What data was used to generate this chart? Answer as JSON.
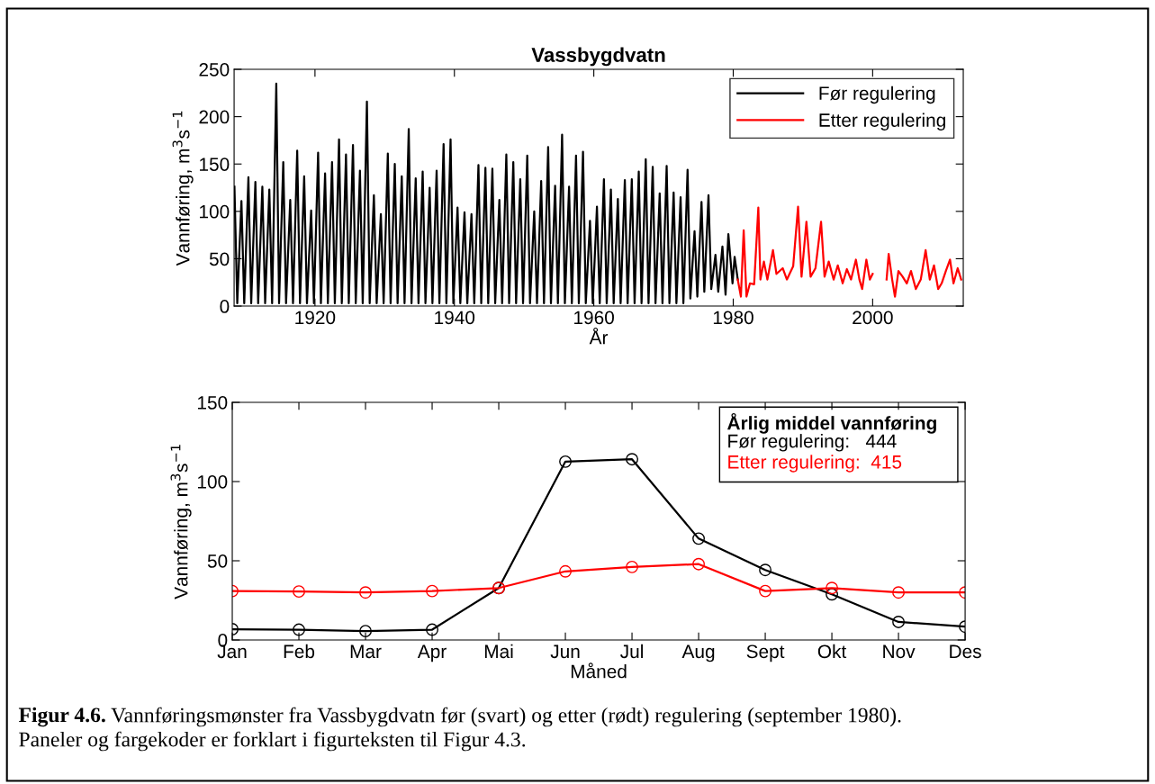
{
  "chart_data": [
    {
      "type": "line",
      "title": "Vassbygdvatn",
      "xlabel": "År",
      "ylabel": "Vannføring, m$^{3}$s$^{−1}$",
      "xlim": [
        1908.4,
        2013
      ],
      "xticks": [
        1920,
        1940,
        1960,
        1980,
        2000
      ],
      "ylim": [
        0,
        250
      ],
      "yticks": [
        0,
        50,
        100,
        150,
        200,
        250
      ],
      "legend": "top right",
      "grid": false,
      "marker": "none",
      "line_style": "solid",
      "series": [
        {
          "name": "Før regulering",
          "color": "#000000",
          "x": [
            1908.45,
            1908.85,
            1909.45,
            1909.85,
            1910.45,
            1910.85,
            1911.45,
            1911.85,
            1912.45,
            1912.85,
            1913.45,
            1913.85,
            1914.45,
            1914.85,
            1915.45,
            1915.85,
            1916.45,
            1916.85,
            1917.45,
            1917.85,
            1918.45,
            1918.85,
            1919.45,
            1919.85,
            1920.45,
            1920.85,
            1921.45,
            1921.85,
            1922.45,
            1922.85,
            1923.45,
            1923.85,
            1924.45,
            1924.85,
            1925.45,
            1925.85,
            1926.45,
            1926.85,
            1927.45,
            1927.85,
            1928.45,
            1928.85,
            1929.45,
            1929.85,
            1930.45,
            1930.85,
            1931.45,
            1931.85,
            1932.45,
            1932.85,
            1933.45,
            1933.85,
            1934.45,
            1934.85,
            1935.45,
            1935.85,
            1936.45,
            1936.85,
            1937.45,
            1937.85,
            1938.45,
            1938.85,
            1939.45,
            1939.85,
            1940.45,
            1940.85,
            1941.45,
            1941.85,
            1942.45,
            1942.85,
            1943.45,
            1943.85,
            1944.45,
            1944.85,
            1945.45,
            1945.85,
            1946.45,
            1946.85,
            1947.45,
            1947.85,
            1948.45,
            1948.85,
            1949.45,
            1949.85,
            1950.45,
            1950.85,
            1951.45,
            1951.85,
            1952.45,
            1952.85,
            1953.45,
            1953.85,
            1954.45,
            1954.85,
            1955.45,
            1955.85,
            1956.45,
            1956.85,
            1957.45,
            1957.85,
            1958.45,
            1958.85,
            1959.45,
            1959.85,
            1960.45,
            1960.85,
            1961.45,
            1961.85,
            1962.45,
            1962.85,
            1963.45,
            1963.85,
            1964.45,
            1964.85,
            1965.45,
            1965.85,
            1966.45,
            1966.85,
            1967.45,
            1967.85,
            1968.45,
            1968.85,
            1969.45,
            1969.85,
            1970.45,
            1970.85,
            1971.45,
            1971.85,
            1972.45,
            1972.85,
            1973.45,
            1973.85,
            1974.45,
            1974.85,
            1975.45,
            1975.85,
            1976.45,
            1976.85,
            1977.45,
            1977.85,
            1978.45,
            1978.9,
            1979.3,
            1979.9,
            1980.2,
            1980.65
          ],
          "values": [
            126,
            3,
            111,
            3,
            136,
            3,
            131,
            3,
            126,
            3,
            123,
            3,
            235,
            3,
            152,
            3,
            112,
            3,
            164,
            3,
            137,
            3,
            101,
            3,
            162,
            3,
            140,
            3,
            152,
            3,
            176,
            3,
            160,
            3,
            170,
            3,
            143,
            3,
            216,
            3,
            117,
            3,
            97,
            3,
            161,
            3,
            150,
            3,
            137,
            3,
            187,
            3,
            135,
            3,
            142,
            3,
            125,
            3,
            143,
            3,
            171,
            3,
            176,
            3,
            104,
            3,
            99,
            3,
            97,
            3,
            149,
            3,
            146,
            3,
            145,
            3,
            112,
            3,
            160,
            3,
            152,
            3,
            134,
            3,
            159,
            3,
            100,
            3,
            132,
            3,
            168,
            3,
            127,
            3,
            181,
            3,
            126,
            3,
            159,
            3,
            163,
            3,
            90,
            3,
            105,
            3,
            134,
            3,
            123,
            3,
            113,
            3,
            133,
            3,
            134,
            3,
            142,
            3,
            155,
            3,
            147,
            3,
            119,
            3,
            148,
            3,
            120,
            3,
            115,
            3,
            144,
            8,
            79,
            10,
            110,
            15,
            117,
            18,
            54,
            15,
            63,
            12,
            76,
            24,
            52,
            28
          ]
        },
        {
          "name": "Etter regulering",
          "color": "#ff0000",
          "x": [
            1980.65,
            1981.1,
            1981.5,
            1981.9,
            1982.4,
            1983.0,
            1983.6,
            1983.9,
            1984.4,
            1984.9,
            1985.7,
            1986.2,
            1987.1,
            1987.7,
            1988.6,
            1989.3,
            1989.8,
            1990.5,
            1991.1,
            1991.8,
            1992.6,
            1993.1,
            1993.7,
            1994.4,
            1995.0,
            1995.7,
            1996.3,
            1996.9,
            1997.6,
            1998.1,
            1998.5,
            1999.1,
            1999.6,
            2000.0,
            2001.0,
            2002.0,
            2002.3,
            2002.8,
            2003.2,
            2003.7,
            2004.3,
            2004.9,
            2005.5,
            2006.2,
            2006.9,
            2007.6,
            2008.2,
            2008.8,
            2009.4,
            2009.9,
            2010.5,
            2011.1,
            2011.6,
            2012.2,
            2012.7
          ],
          "values": [
            28,
            10,
            80,
            10,
            24,
            23,
            104,
            28,
            47,
            28,
            59,
            34,
            40,
            28,
            42,
            105,
            31,
            89,
            31,
            40,
            89,
            31,
            47,
            28,
            43,
            24,
            39,
            28,
            49,
            28,
            18,
            49,
            28,
            34,
            null,
            28,
            55,
            28,
            10,
            37,
            31,
            24,
            37,
            18,
            28,
            59,
            28,
            43,
            18,
            24,
            37,
            49,
            24,
            40,
            28
          ]
        }
      ]
    },
    {
      "type": "line",
      "xlabel": "Måned",
      "ylabel": "Vannføring, m$^{3}$s$^{−1}$",
      "categories": [
        "Jan",
        "Feb",
        "Mar",
        "Apr",
        "Mai",
        "Jun",
        "Jul",
        "Aug",
        "Sept",
        "Okt",
        "Nov",
        "Des"
      ],
      "ylim": [
        0,
        150
      ],
      "yticks": [
        0,
        50,
        100,
        150
      ],
      "grid": false,
      "marker": "circle",
      "line_style": "solid",
      "annotations": [
        "Årlig middel vannføring",
        "Før regulering:   444",
        "Etter regulering:  415",
        "Figur 4.6.",
        "Vannføringsmønster fra Vassbygdvatn før (svart) og etter (rødt) regulering (september 1980).\nPaneler og fargekoder er forklart i figurteksten til Figur 4.3."
      ],
      "series": [
        {
          "color": "#000000",
          "values": [
            6.8,
            6.5,
            5.6,
            6.5,
            32.8,
            112.6,
            114.1,
            64,
            44.2,
            28.8,
            11.4,
            8.4
          ]
        },
        {
          "color": "#ff0000",
          "values": [
            30.9,
            30.6,
            30,
            30.9,
            32.8,
            43.3,
            46.1,
            47.9,
            30.9,
            32.8,
            30,
            30
          ]
        }
      ]
    }
  ]
}
